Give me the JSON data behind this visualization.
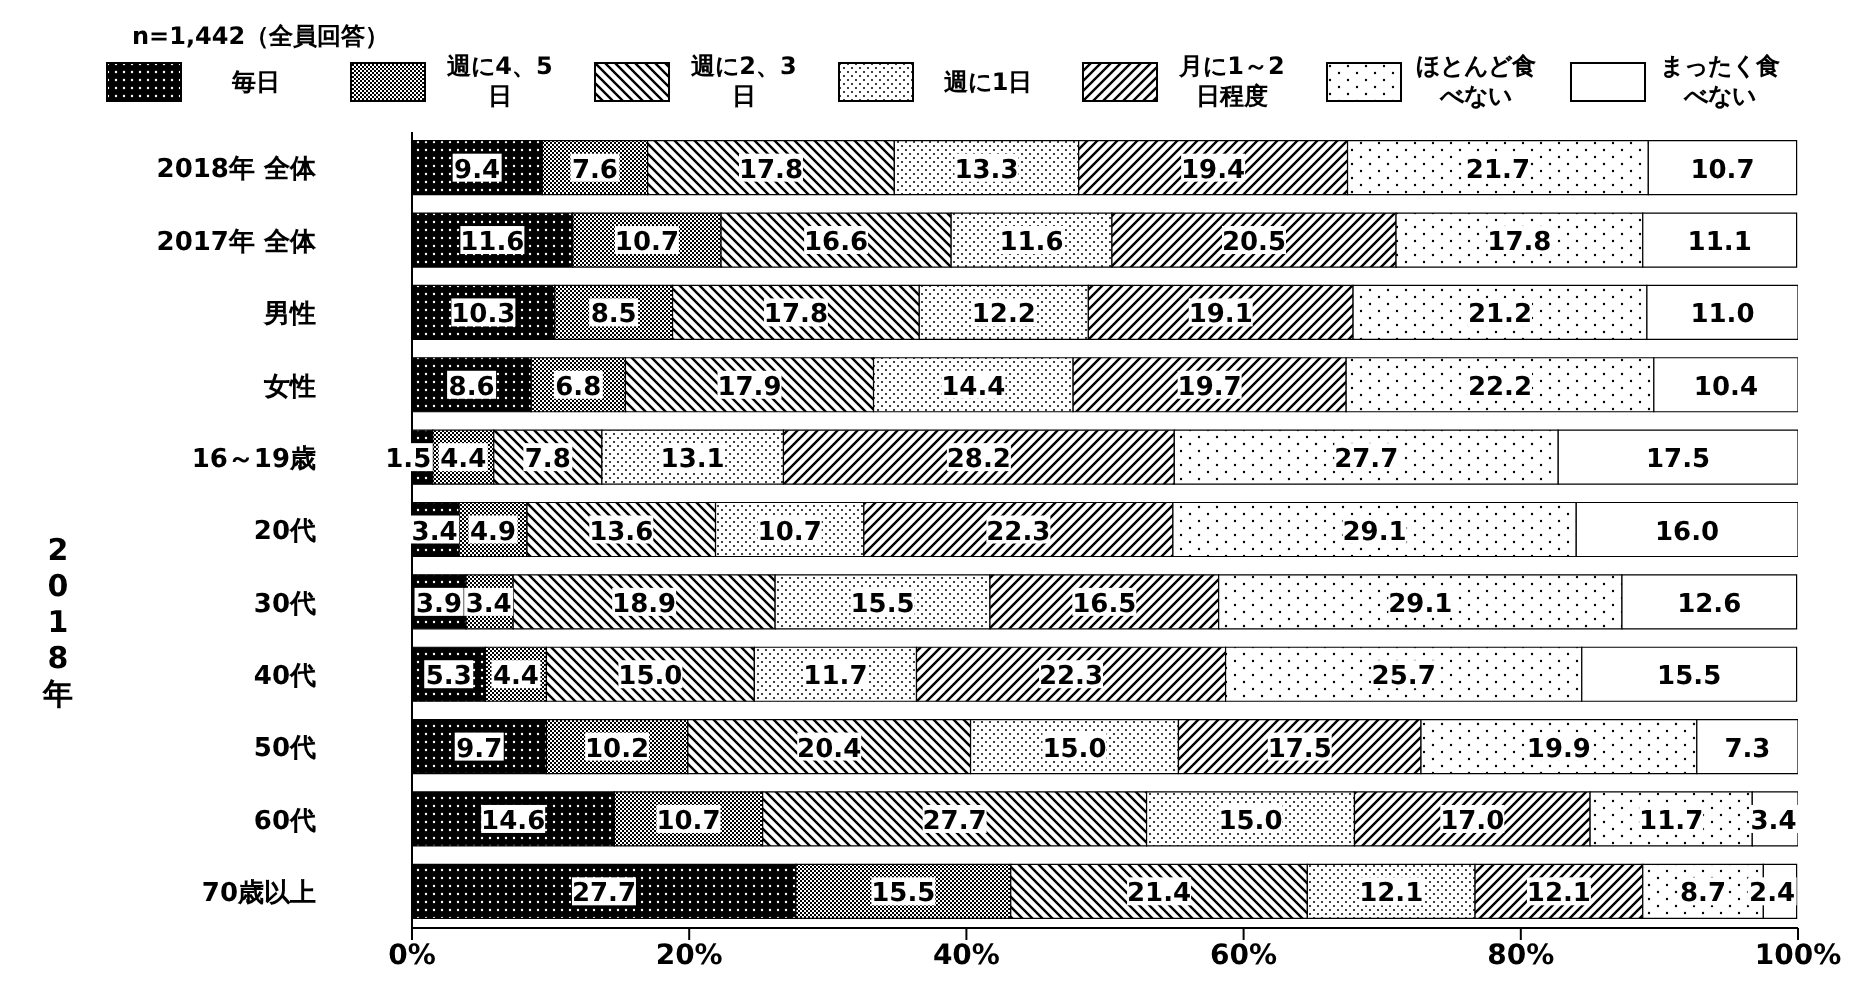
{
  "chart_data": {
    "type": "bar",
    "orientation": "horizontal",
    "stacked": true,
    "legend": "top",
    "grid": false,
    "annotations": [
      "n=1,442（全員回答）",
      "2018年"
    ],
    "categories": [
      "2018年 全体",
      "2017年 全体",
      "男性",
      "女性",
      "16～19歳",
      "20代",
      "30代",
      "40代",
      "50代",
      "60代",
      "70歳以上"
    ],
    "xlim": [
      0,
      100
    ],
    "xticks": [
      {
        "value": 0,
        "label": "0%"
      },
      {
        "value": 20,
        "label": "20%"
      },
      {
        "value": 40,
        "label": "40%"
      },
      {
        "value": 60,
        "label": "60%"
      },
      {
        "value": 80,
        "label": "80%"
      },
      {
        "value": 100,
        "label": "100%"
      }
    ],
    "series": [
      {
        "name": "毎日",
        "color": "#000000",
        "values": [
          9.4,
          11.6,
          10.3,
          8.6,
          1.5,
          3.4,
          3.9,
          5.3,
          9.7,
          14.6,
          27.7
        ],
        "value_labels": [
          "9.4",
          "11.6",
          "10.3",
          "8.6",
          "1.5",
          "3.4",
          "3.9",
          "5.3",
          "9.7",
          "14.6",
          "27.7"
        ]
      },
      {
        "name": "週に4、5日",
        "color": "#000000",
        "values": [
          7.6,
          10.7,
          8.5,
          6.8,
          4.4,
          4.9,
          3.4,
          4.4,
          10.2,
          10.7,
          15.5
        ],
        "value_labels": [
          "7.6",
          "10.7",
          "8.5",
          "6.8",
          "4.4",
          "4.9",
          "3.4",
          "4.4",
          "10.2",
          "10.7",
          "15.5"
        ]
      },
      {
        "name": "週に2、3日",
        "color": "#000000",
        "values": [
          17.8,
          16.6,
          17.8,
          17.9,
          7.8,
          13.6,
          18.9,
          15.0,
          20.4,
          27.7,
          21.4
        ],
        "value_labels": [
          "17.8",
          "16.6",
          "17.8",
          "17.9",
          "7.8",
          "13.6",
          "18.9",
          "15.0",
          "20.4",
          "27.7",
          "21.4"
        ]
      },
      {
        "name": "週に1日",
        "color": "#000000",
        "values": [
          13.3,
          11.6,
          12.2,
          14.4,
          13.1,
          10.7,
          15.5,
          11.7,
          15.0,
          15.0,
          12.1
        ],
        "value_labels": [
          "13.3",
          "11.6",
          "12.2",
          "14.4",
          "13.1",
          "10.7",
          "15.5",
          "11.7",
          "15.0",
          "15.0",
          "12.1"
        ]
      },
      {
        "name": "月に1～2日程度",
        "color": "#000000",
        "values": [
          19.4,
          20.5,
          19.1,
          19.7,
          28.2,
          22.3,
          16.5,
          22.3,
          17.5,
          17.0,
          12.1
        ],
        "value_labels": [
          "19.4",
          "20.5",
          "19.1",
          "19.7",
          "28.2",
          "22.3",
          "16.5",
          "22.3",
          "17.5",
          "17.0",
          "12.1"
        ]
      },
      {
        "name": "ほとんど食べない",
        "color": "#000000",
        "values": [
          21.7,
          17.8,
          21.2,
          22.2,
          27.7,
          29.1,
          29.1,
          25.7,
          19.9,
          11.7,
          8.7
        ],
        "value_labels": [
          "21.7",
          "17.8",
          "21.2",
          "22.2",
          "27.7",
          "29.1",
          "29.1",
          "25.7",
          "19.9",
          "11.7",
          "8.7"
        ]
      },
      {
        "name": "まったく食べない",
        "color": "#000000",
        "values": [
          10.7,
          11.1,
          11.0,
          10.4,
          17.5,
          16.0,
          12.6,
          15.5,
          7.3,
          3.4,
          2.4
        ],
        "value_labels": [
          "10.7",
          "11.1",
          "11.0",
          "10.4",
          "17.5",
          "16.0",
          "12.6",
          "15.5",
          "7.3",
          "3.4",
          "2.4"
        ]
      }
    ]
  }
}
